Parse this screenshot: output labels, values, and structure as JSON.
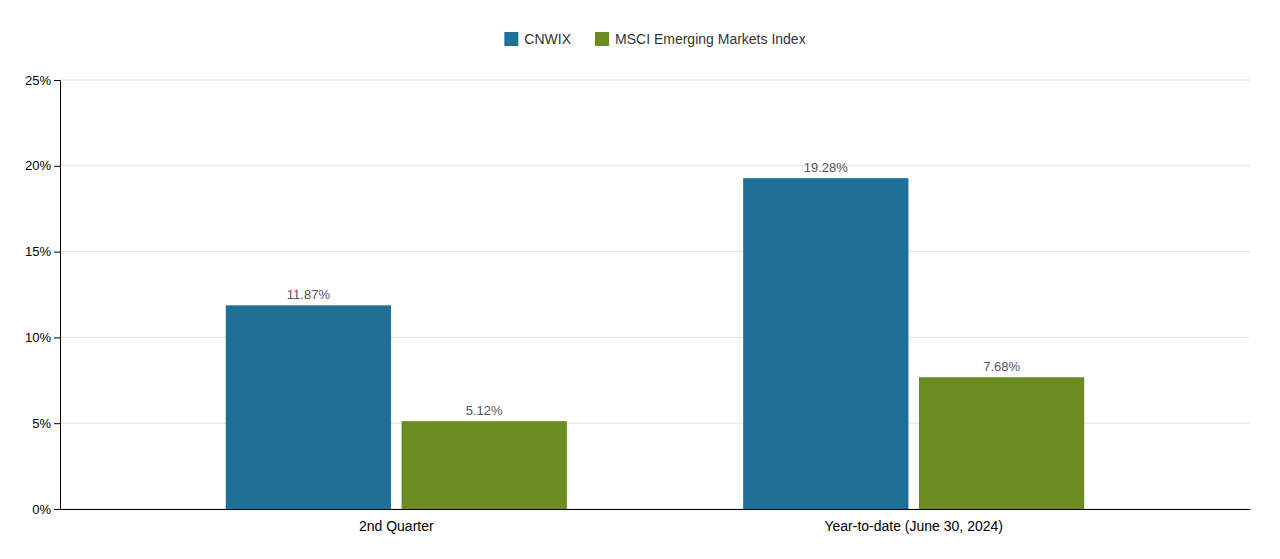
{
  "chart_data": {
    "type": "bar",
    "categories": [
      "2nd Quarter",
      "Year-to-date (June 30, 2024)"
    ],
    "series": [
      {
        "name": "CNWIX",
        "color": "#1f7096",
        "values": [
          11.87,
          19.28
        ],
        "value_labels": [
          "11.87%",
          "19.28%"
        ]
      },
      {
        "name": "MSCI Emerging Markets Index",
        "color": "#6b8c21",
        "values": [
          5.12,
          7.68
        ],
        "value_labels": [
          "5.12%",
          "7.68%"
        ]
      }
    ],
    "ylim": [
      0,
      25
    ],
    "yticks": [
      {
        "value": 0,
        "label": "0%"
      },
      {
        "value": 5,
        "label": "5%"
      },
      {
        "value": 10,
        "label": "10%"
      },
      {
        "value": 15,
        "label": "15%"
      },
      {
        "value": 20,
        "label": "20%"
      },
      {
        "value": 25,
        "label": "25%"
      }
    ],
    "grid": true,
    "legend": "top",
    "data_labels": true
  }
}
